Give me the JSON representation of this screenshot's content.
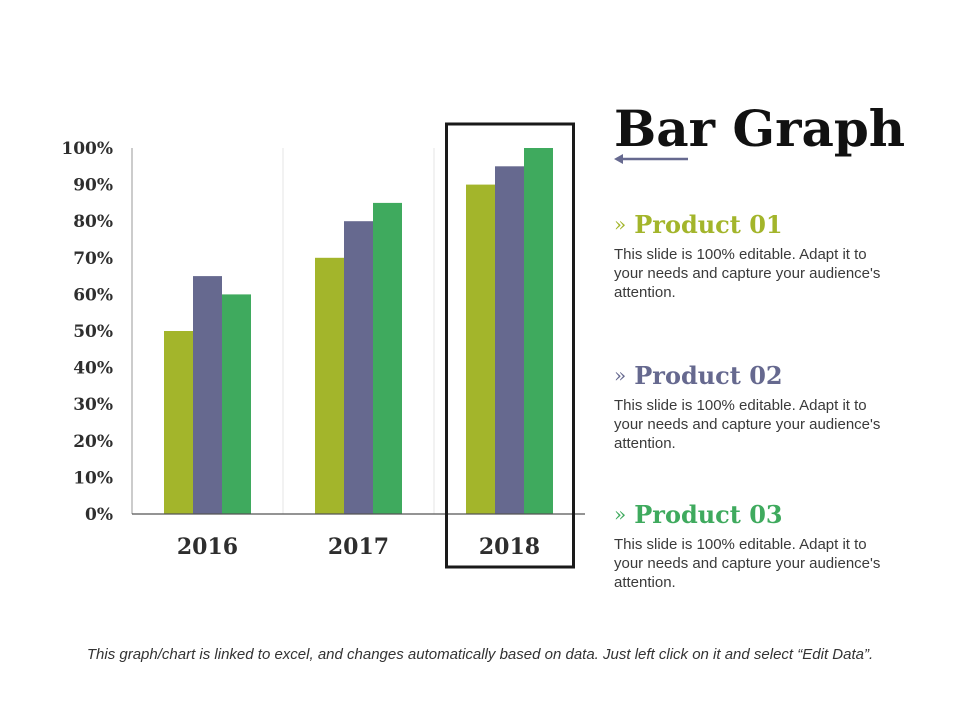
{
  "title": "Bar Graph",
  "chart_data": {
    "type": "bar",
    "categories": [
      "2016",
      "2017",
      "2018"
    ],
    "series": [
      {
        "name": "Product 01",
        "color": "#a3b52b",
        "values": [
          50,
          70,
          90
        ]
      },
      {
        "name": "Product 02",
        "color": "#66698f",
        "values": [
          65,
          80,
          95
        ]
      },
      {
        "name": "Product 03",
        "color": "#3faa5e",
        "values": [
          60,
          85,
          100
        ]
      }
    ],
    "ylim": [
      0,
      100
    ],
    "yticks": [
      "0%",
      "10%",
      "20%",
      "30%",
      "40%",
      "50%",
      "60%",
      "70%",
      "80%",
      "90%",
      "100%"
    ],
    "highlighted_category": "2018",
    "grid": false,
    "xlabel": "",
    "ylabel": ""
  },
  "products": [
    {
      "chevron": "»",
      "name": "Product 01",
      "color": "#a3b52b",
      "description": "This slide is 100% editable. Adapt it to your needs and capture your audience's attention."
    },
    {
      "chevron": "»",
      "name": "Product 02",
      "color": "#66698f",
      "description": "This slide is 100% editable. Adapt it to your needs and capture your audience's attention."
    },
    {
      "chevron": "»",
      "name": "Product 03",
      "color": "#3faa5e",
      "description": "This slide is 100% editable. Adapt it to your needs and capture your audience's attention."
    }
  ],
  "footnote": "This graph/chart is linked to excel, and changes automatically based on data. Just left click on it and select “Edit Data”.",
  "colors": {
    "arrow": "#66698f",
    "frame": "#1a1a1a"
  }
}
